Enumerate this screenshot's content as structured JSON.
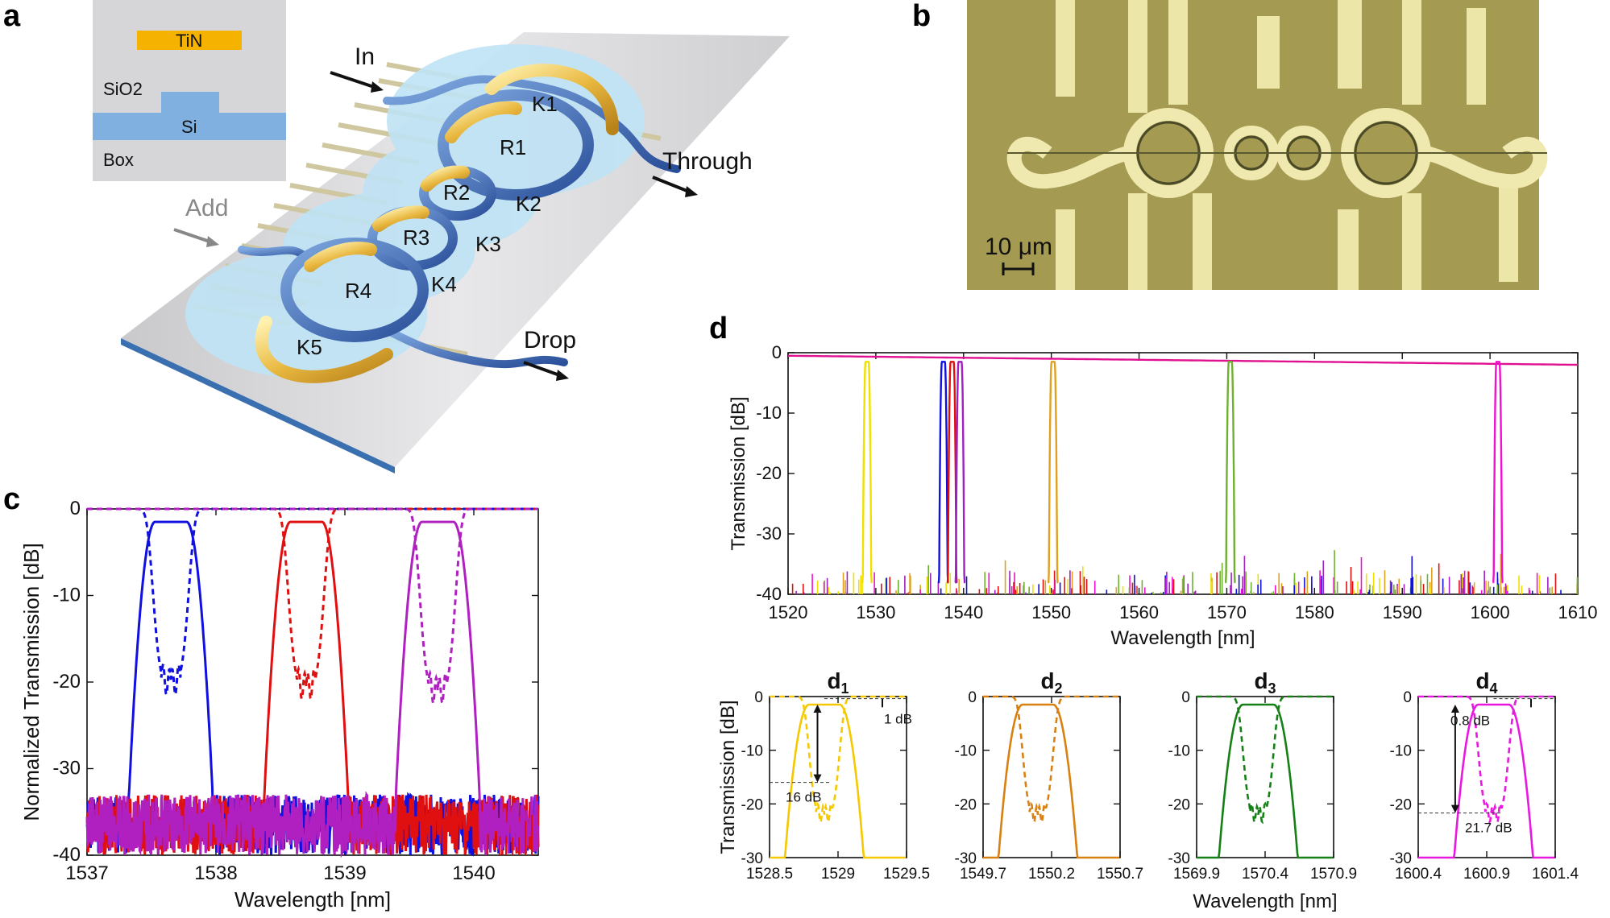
{
  "panels": {
    "a": "a",
    "b": "b",
    "c": "c",
    "d": "d"
  },
  "panel_a": {
    "inset": {
      "metal": "TiN",
      "cladding": "SiO2",
      "core": "Si",
      "substrate": "Box"
    },
    "ports": {
      "in": "In",
      "through": "Through",
      "add": "Add",
      "drop": "Drop"
    },
    "rings": [
      "R1",
      "R2",
      "R3",
      "R4"
    ],
    "couplers": [
      "K1",
      "K2",
      "K3",
      "K4",
      "K5"
    ]
  },
  "panel_b": {
    "scale_bar": "10 μm"
  },
  "chart_data": [
    {
      "id": "c",
      "type": "line",
      "title": "",
      "xlabel": "Wavelength [nm]",
      "ylabel": "Normalized Transmission [dB]",
      "xlim": [
        1537,
        1540.5
      ],
      "ylim": [
        -40,
        0
      ],
      "xticks": [
        "1537",
        "1538",
        "1539",
        "1540"
      ],
      "yticks": [
        "0",
        "-10",
        "-20",
        "-30",
        "-40"
      ],
      "series": [
        {
          "name": "drop blue",
          "style": "solid",
          "color": "#1010e0",
          "center": 1537.65,
          "width": 0.35
        },
        {
          "name": "through blue",
          "style": "dashed",
          "color": "#1010e0",
          "center": 1537.65,
          "width": 0.15,
          "depth": -20
        },
        {
          "name": "drop red",
          "style": "solid",
          "color": "#e01010",
          "center": 1538.7,
          "width": 0.35
        },
        {
          "name": "through red",
          "style": "dashed",
          "color": "#e01010",
          "center": 1538.7,
          "width": 0.15,
          "depth": -20.5
        },
        {
          "name": "drop magenta",
          "style": "solid",
          "color": "#b020c0",
          "center": 1539.72,
          "width": 0.35
        },
        {
          "name": "through magenta",
          "style": "dashed",
          "color": "#b020c0",
          "center": 1539.72,
          "width": 0.15,
          "depth": -21
        }
      ]
    },
    {
      "id": "d",
      "type": "line",
      "title": "",
      "xlabel": "Wavelength [nm]",
      "ylabel": "Transmission [dB]",
      "xlim": [
        1520,
        1610
      ],
      "ylim": [
        -40,
        0
      ],
      "xticks": [
        "1520",
        "1530",
        "1540",
        "1550",
        "1560",
        "1570",
        "1580",
        "1590",
        "1600",
        "1610"
      ],
      "yticks": [
        "0",
        "-10",
        "-20",
        "-30",
        "-40"
      ],
      "channels": [
        {
          "center": 1529.0,
          "color": "#f0e000"
        },
        {
          "center": 1537.7,
          "color": "#1010e0"
        },
        {
          "center": 1538.7,
          "color": "#e01010"
        },
        {
          "center": 1539.6,
          "color": "#a020c0"
        },
        {
          "center": 1550.2,
          "color": "#e0a020"
        },
        {
          "center": 1570.4,
          "color": "#70b030"
        },
        {
          "center": 1600.9,
          "color": "#f010d0"
        }
      ]
    },
    {
      "id": "d1",
      "type": "line",
      "title": "d1",
      "xlabel": "",
      "ylabel": "Transmission [dB]",
      "xlim": [
        1528.5,
        1529.5
      ],
      "ylim": [
        -30,
        0
      ],
      "xticks": [
        "1528.5",
        "1529",
        "1529.5"
      ],
      "yticks": [
        "0",
        "-10",
        "-20",
        "-30"
      ],
      "color": "#f5c800",
      "center": 1528.9,
      "annotations": [
        "1 dB",
        "16 dB"
      ]
    },
    {
      "id": "d2",
      "type": "line",
      "title": "d2",
      "xlabel": "",
      "ylabel": "",
      "xlim": [
        1549.7,
        1550.7
      ],
      "ylim": [
        -30,
        0
      ],
      "xticks": [
        "1549.7",
        "1550.2",
        "1550.7"
      ],
      "yticks": [
        "0",
        "-10",
        "-20",
        "-30"
      ],
      "color": "#d88010",
      "center": 1550.1
    },
    {
      "id": "d3",
      "type": "line",
      "title": "d3",
      "xlabel": "Wavelength [nm]",
      "ylabel": "",
      "xlim": [
        1569.9,
        1570.9
      ],
      "ylim": [
        -30,
        0
      ],
      "xticks": [
        "1569.9",
        "1570.4",
        "1570.9"
      ],
      "yticks": [
        "0",
        "-10",
        "-20",
        "-30"
      ],
      "color": "#158015",
      "center": 1570.35
    },
    {
      "id": "d4",
      "type": "line",
      "title": "d4",
      "xlabel": "",
      "ylabel": "",
      "xlim": [
        1600.4,
        1601.4
      ],
      "ylim": [
        -30,
        0
      ],
      "xticks": [
        "1600.4",
        "1600.9",
        "1601.4"
      ],
      "yticks": [
        "0",
        "-10",
        "-20",
        "-30"
      ],
      "color": "#e818e0",
      "center": 1600.95,
      "annotations": [
        "0.8 dB",
        "21.7 dB"
      ]
    }
  ]
}
